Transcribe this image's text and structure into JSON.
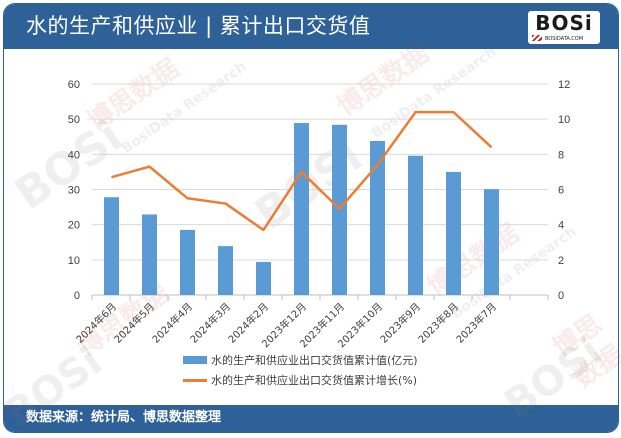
{
  "header": {
    "title": "水的生产和供应业 | 累计出口交货值",
    "logo_text": "BOSi",
    "logo_subtext": "BOSIDATA.COM"
  },
  "footer": {
    "source": "数据来源：统计局、博思数据整理"
  },
  "legend": {
    "bar_label": "水的生产和供应业出口交货值累计值(亿元)",
    "line_label": "水的生产和供应业出口交货值累计增长(%)"
  },
  "watermark": {
    "text_cn": "博思数据",
    "text_en": "BosiData Research",
    "logo": "BOSi"
  },
  "colors": {
    "header_bg": "#2f6199",
    "bar": "#5b9bd5",
    "line": "#ed7d31",
    "grid": "#d9d9d9"
  },
  "chart_data": {
    "type": "bar+line",
    "title": "水的生产和供应业 | 累计出口交货值",
    "categories": [
      "2024年6月",
      "2024年5月",
      "2024年4月",
      "2024年3月",
      "2024年2月",
      "2023年12月",
      "2023年11月",
      "2023年10月",
      "2023年9月",
      "2023年8月",
      "2023年7月"
    ],
    "series": [
      {
        "name": "水的生产和供应业出口交货值累计值(亿元)",
        "type": "bar",
        "axis": "left",
        "values": [
          27.8,
          22.9,
          18.5,
          13.9,
          9.4,
          48.9,
          48.4,
          43.8,
          39.6,
          35.0,
          30.1
        ]
      },
      {
        "name": "水的生产和供应业出口交货值累计增长(%)",
        "type": "line",
        "axis": "right",
        "values": [
          6.7,
          7.3,
          5.5,
          5.2,
          3.7,
          7.0,
          4.9,
          7.4,
          10.4,
          10.4,
          8.4
        ]
      }
    ],
    "left_axis": {
      "min": 0,
      "max": 60,
      "step": 10,
      "ticks": [
        "0",
        "10",
        "20",
        "30",
        "40",
        "50",
        "60"
      ]
    },
    "right_axis": {
      "min": 0,
      "max": 12,
      "step": 2,
      "ticks": [
        "0",
        "2",
        "4",
        "6",
        "8",
        "10",
        "12"
      ]
    },
    "grid": true,
    "legend_position": "bottom",
    "xlabel": "",
    "ylabel": ""
  }
}
